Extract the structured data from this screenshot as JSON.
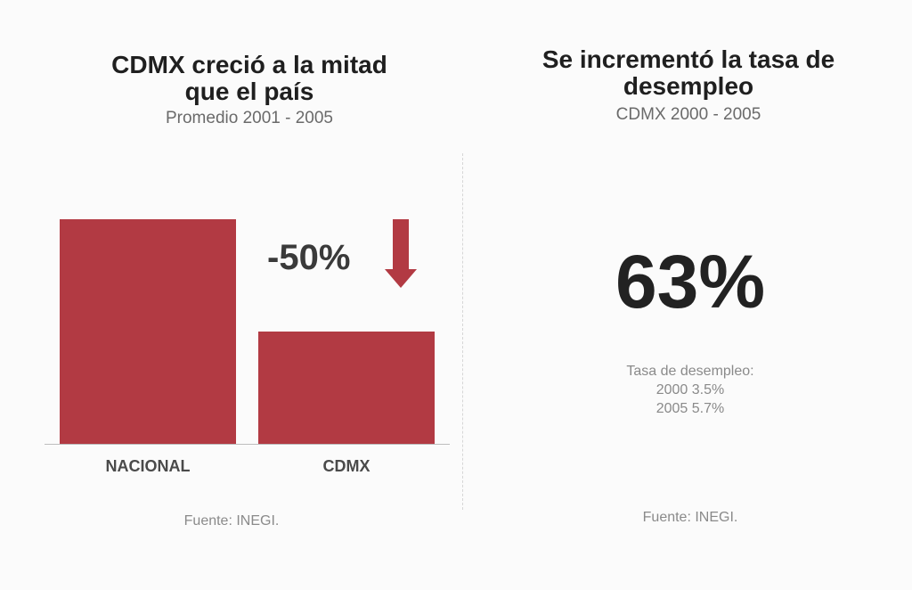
{
  "left_panel": {
    "title": "CDMX creció a la mitad\nque el país",
    "subtitle": "Promedio 2001 - 2005",
    "delta_label": "-50%",
    "source": "Fuente: INEGI."
  },
  "right_panel": {
    "title": "Se incrementó la tasa de\ndesempleo",
    "subtitle": "CDMX 2000 - 2005",
    "big_value": "63%",
    "notes": {
      "line1": "Tasa de desempleo:",
      "line2": "2000 3.5%",
      "line3": "2005 5.7%"
    },
    "source": "Fuente: INEGI."
  },
  "chart_data": {
    "type": "bar",
    "categories": [
      "NACIONAL",
      "CDMX"
    ],
    "values": [
      1.0,
      0.5
    ],
    "title": "CDMX creció a la mitad\nque el país",
    "subtitle": "Promedio 2001 - 2005",
    "annotation": "-50%",
    "ylim": [
      0,
      1
    ],
    "grid": false,
    "colors": {
      "bar": "#b23a43",
      "arrow": "#b23a43",
      "baseline": "#bdbdbd"
    }
  }
}
